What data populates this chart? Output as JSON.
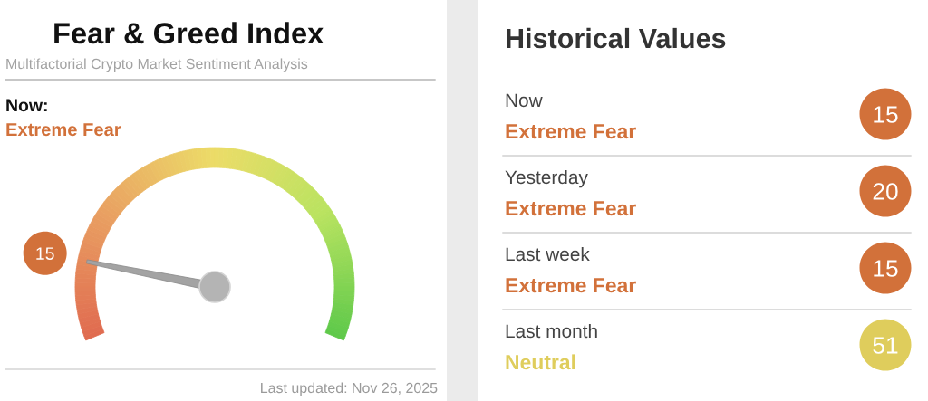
{
  "chart_data": [
    {
      "type": "other",
      "title": "Fear & Greed Index",
      "subtitle": "Multifactorial Crypto Market Sentiment Analysis",
      "values": [
        15
      ],
      "data_labels": true,
      "color": "#d2713a",
      "annotations": [
        "Now:",
        "Extreme Fear",
        "Last updated: Nov 26, 2025"
      ]
    },
    {
      "type": "other",
      "title": "Historical Values",
      "annotations": [
        "Now",
        "Extreme Fear",
        "15",
        "Yesterday",
        "Extreme Fear",
        "20",
        "Last week",
        "Extreme Fear",
        "15",
        "Last month",
        "Neutral",
        "51"
      ]
    }
  ]
}
